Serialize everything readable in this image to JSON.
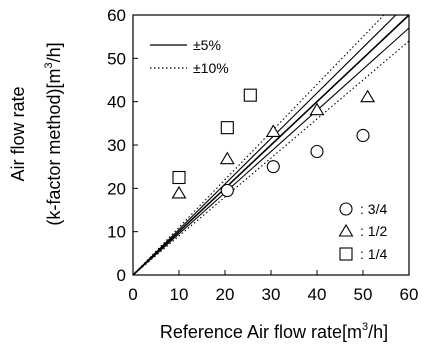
{
  "chart_data": {
    "type": "scatter",
    "x_axis": {
      "label": "Reference Air flow rate[m",
      "label_sup": "3",
      "label_end": "/h]",
      "range": [
        0,
        60
      ],
      "ticks": [
        0,
        10,
        20,
        30,
        40,
        50,
        60
      ],
      "tick_labels": [
        "0",
        "10",
        "20",
        "30",
        "40",
        "50",
        "60"
      ]
    },
    "y_axis": {
      "label_line1": "Air flow rate",
      "label_line2": "(k-factor method)[m",
      "label_sup": "3",
      "label_end": "/h]",
      "range": [
        0,
        60
      ],
      "ticks": [
        0,
        10,
        20,
        30,
        40,
        50,
        60
      ],
      "tick_labels": [
        "0",
        "10",
        "20",
        "30",
        "40",
        "50",
        "60"
      ]
    },
    "grid": false,
    "reference_lines": [
      {
        "name": "±5%",
        "style": "solid",
        "slopes": [
          1.0,
          0.95,
          1.05
        ]
      },
      {
        "name": "±10%",
        "style": "dotted",
        "slopes": [
          0.9,
          1.1
        ]
      }
    ],
    "series": [
      {
        "name": ": 3/4",
        "marker": "circle",
        "points": [
          [
            20.5,
            19.5
          ],
          [
            30.5,
            25.0
          ],
          [
            40.0,
            28.5
          ],
          [
            50.0,
            32.2
          ]
        ]
      },
      {
        "name": ": 1/2",
        "marker": "triangle",
        "points": [
          [
            10.0,
            18.8
          ],
          [
            20.5,
            26.7
          ],
          [
            30.5,
            33.0
          ],
          [
            40.0,
            38.0
          ],
          [
            51.0,
            41.0
          ]
        ]
      },
      {
        "name": ": 1/4",
        "marker": "square",
        "points": [
          [
            10.0,
            22.5
          ],
          [
            20.5,
            34.0
          ],
          [
            25.5,
            41.5
          ]
        ]
      }
    ],
    "legend_top": {
      "placement": "top-left"
    },
    "legend_bottom": {
      "placement": "bottom-right"
    }
  }
}
